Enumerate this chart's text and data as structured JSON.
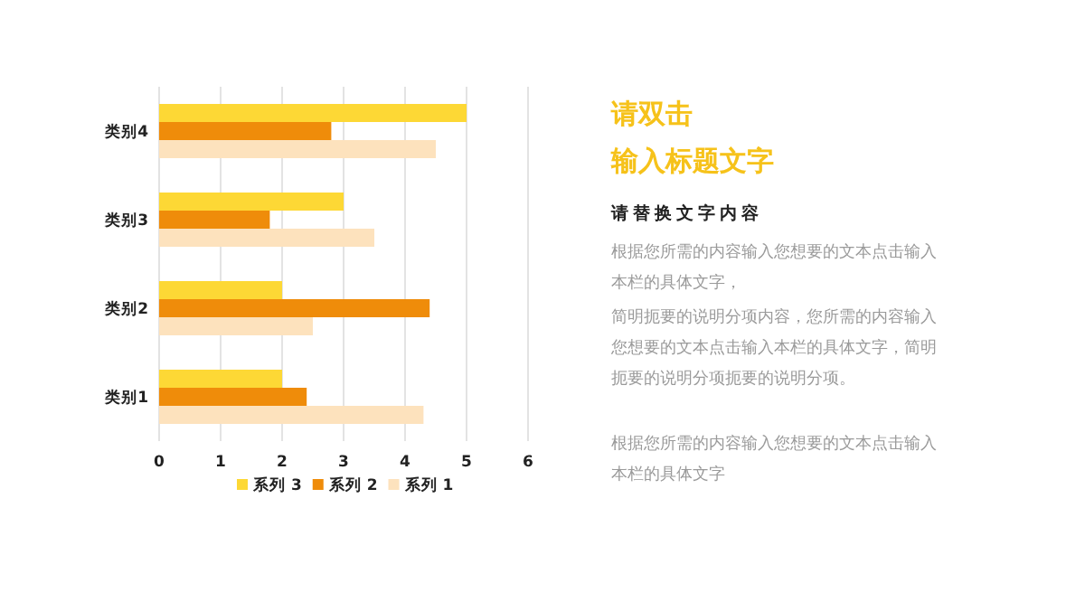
{
  "chart_data": [
    {
      "type": "bar",
      "orientation": "horizontal",
      "categories": [
        "类别4",
        "类别3",
        "类别2",
        "类别1"
      ],
      "series": [
        {
          "name": "系列 3",
          "color": "#fdd835",
          "values": [
            5,
            3,
            2,
            2
          ]
        },
        {
          "name": "系列 2",
          "color": "#ef8c0a",
          "values": [
            2.8,
            1.8,
            4.4,
            2.4
          ]
        },
        {
          "name": "系列 1",
          "color": "#fde2bd",
          "values": [
            4.5,
            3.5,
            2.5,
            4.3
          ]
        }
      ],
      "xlim": [
        0,
        6
      ],
      "xticks": [
        0,
        1,
        2,
        3,
        4,
        5,
        6
      ],
      "grid": "x",
      "legend": "bottom"
    },
    {
      "type": "other",
      "title": "请双击输入标题文字",
      "subtitle": "请替换文字内容",
      "annotations": [
        "根据您所需的内容输入您想要的文本点击输入本栏的具体文字，",
        "简明扼要的说明分项内容，您所需的内容输入您想要的文本点击输入本栏的具体文字，简明扼要的说明分项扼要的说明分项。",
        "根据您所需的内容输入您想要的文本点击输入本栏的具体文字"
      ]
    }
  ]
}
